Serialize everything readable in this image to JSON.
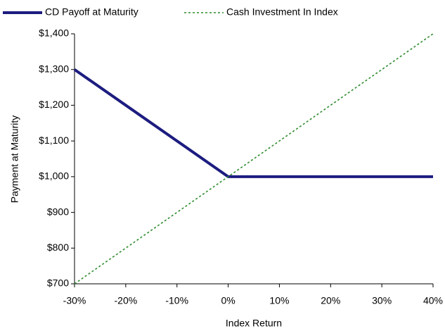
{
  "chart_data": {
    "type": "line",
    "x_label": "Index Return",
    "y_label": "Payment at Maturity",
    "x": [
      -30,
      -20,
      -10,
      0,
      10,
      20,
      30,
      40
    ],
    "series": [
      {
        "name": "CD Payoff at Maturity",
        "color": "#1c1c80",
        "values": [
          1300,
          1200,
          1100,
          1000,
          1000,
          1000,
          1000,
          1000
        ]
      },
      {
        "name": "Cash Investment In Index",
        "color": "#2e8b2e",
        "values": [
          700,
          800,
          900,
          1000,
          1100,
          1200,
          1300,
          1400
        ]
      }
    ],
    "xlim": [
      -30,
      40
    ],
    "xticks": [
      {
        "value": -30,
        "label": "-30%"
      },
      {
        "value": -20,
        "label": "-20%"
      },
      {
        "value": -10,
        "label": "-10%"
      },
      {
        "value": 0,
        "label": "0%"
      },
      {
        "value": 10,
        "label": "10%"
      },
      {
        "value": 20,
        "label": "20%"
      },
      {
        "value": 30,
        "label": "30%"
      },
      {
        "value": 40,
        "label": "40%"
      }
    ],
    "ylim": [
      700,
      1400
    ],
    "yticks": [
      {
        "value": 700,
        "label": "$700"
      },
      {
        "value": 800,
        "label": "$800"
      },
      {
        "value": 900,
        "label": "$900"
      },
      {
        "value": 1000,
        "label": "$1,000"
      },
      {
        "value": 1100,
        "label": "$1,100"
      },
      {
        "value": 1200,
        "label": "$1,200"
      },
      {
        "value": 1300,
        "label": "$1,300"
      },
      {
        "value": 1400,
        "label": "$1,400"
      }
    ],
    "grid": false,
    "legend": "top"
  }
}
